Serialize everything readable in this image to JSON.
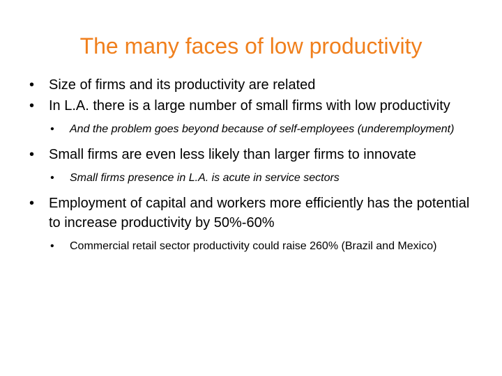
{
  "slide": {
    "title": "The many faces of low productivity",
    "title_color": "#f07f1c",
    "bullets": [
      {
        "text": "Size of firms and its productivity are related"
      },
      {
        "text": "In L.A. there is a large number of small firms with low productivity"
      },
      {
        "text": "And the problem goes beyond because of self-employees (underemployment)",
        "level": 2
      },
      {
        "text": "Small firms are even less likely than larger firms to innovate"
      },
      {
        "text": "Small firms presence in L.A. is acute in service sectors",
        "level": 2
      },
      {
        "text": "Employment of capital and workers more efficiently has the potential  to increase productivity by 50%-60%"
      },
      {
        "text": "Commercial retail sector productivity could raise 260% (Brazil and Mexico)",
        "level": 2
      }
    ],
    "bullet_glyph": "•"
  }
}
